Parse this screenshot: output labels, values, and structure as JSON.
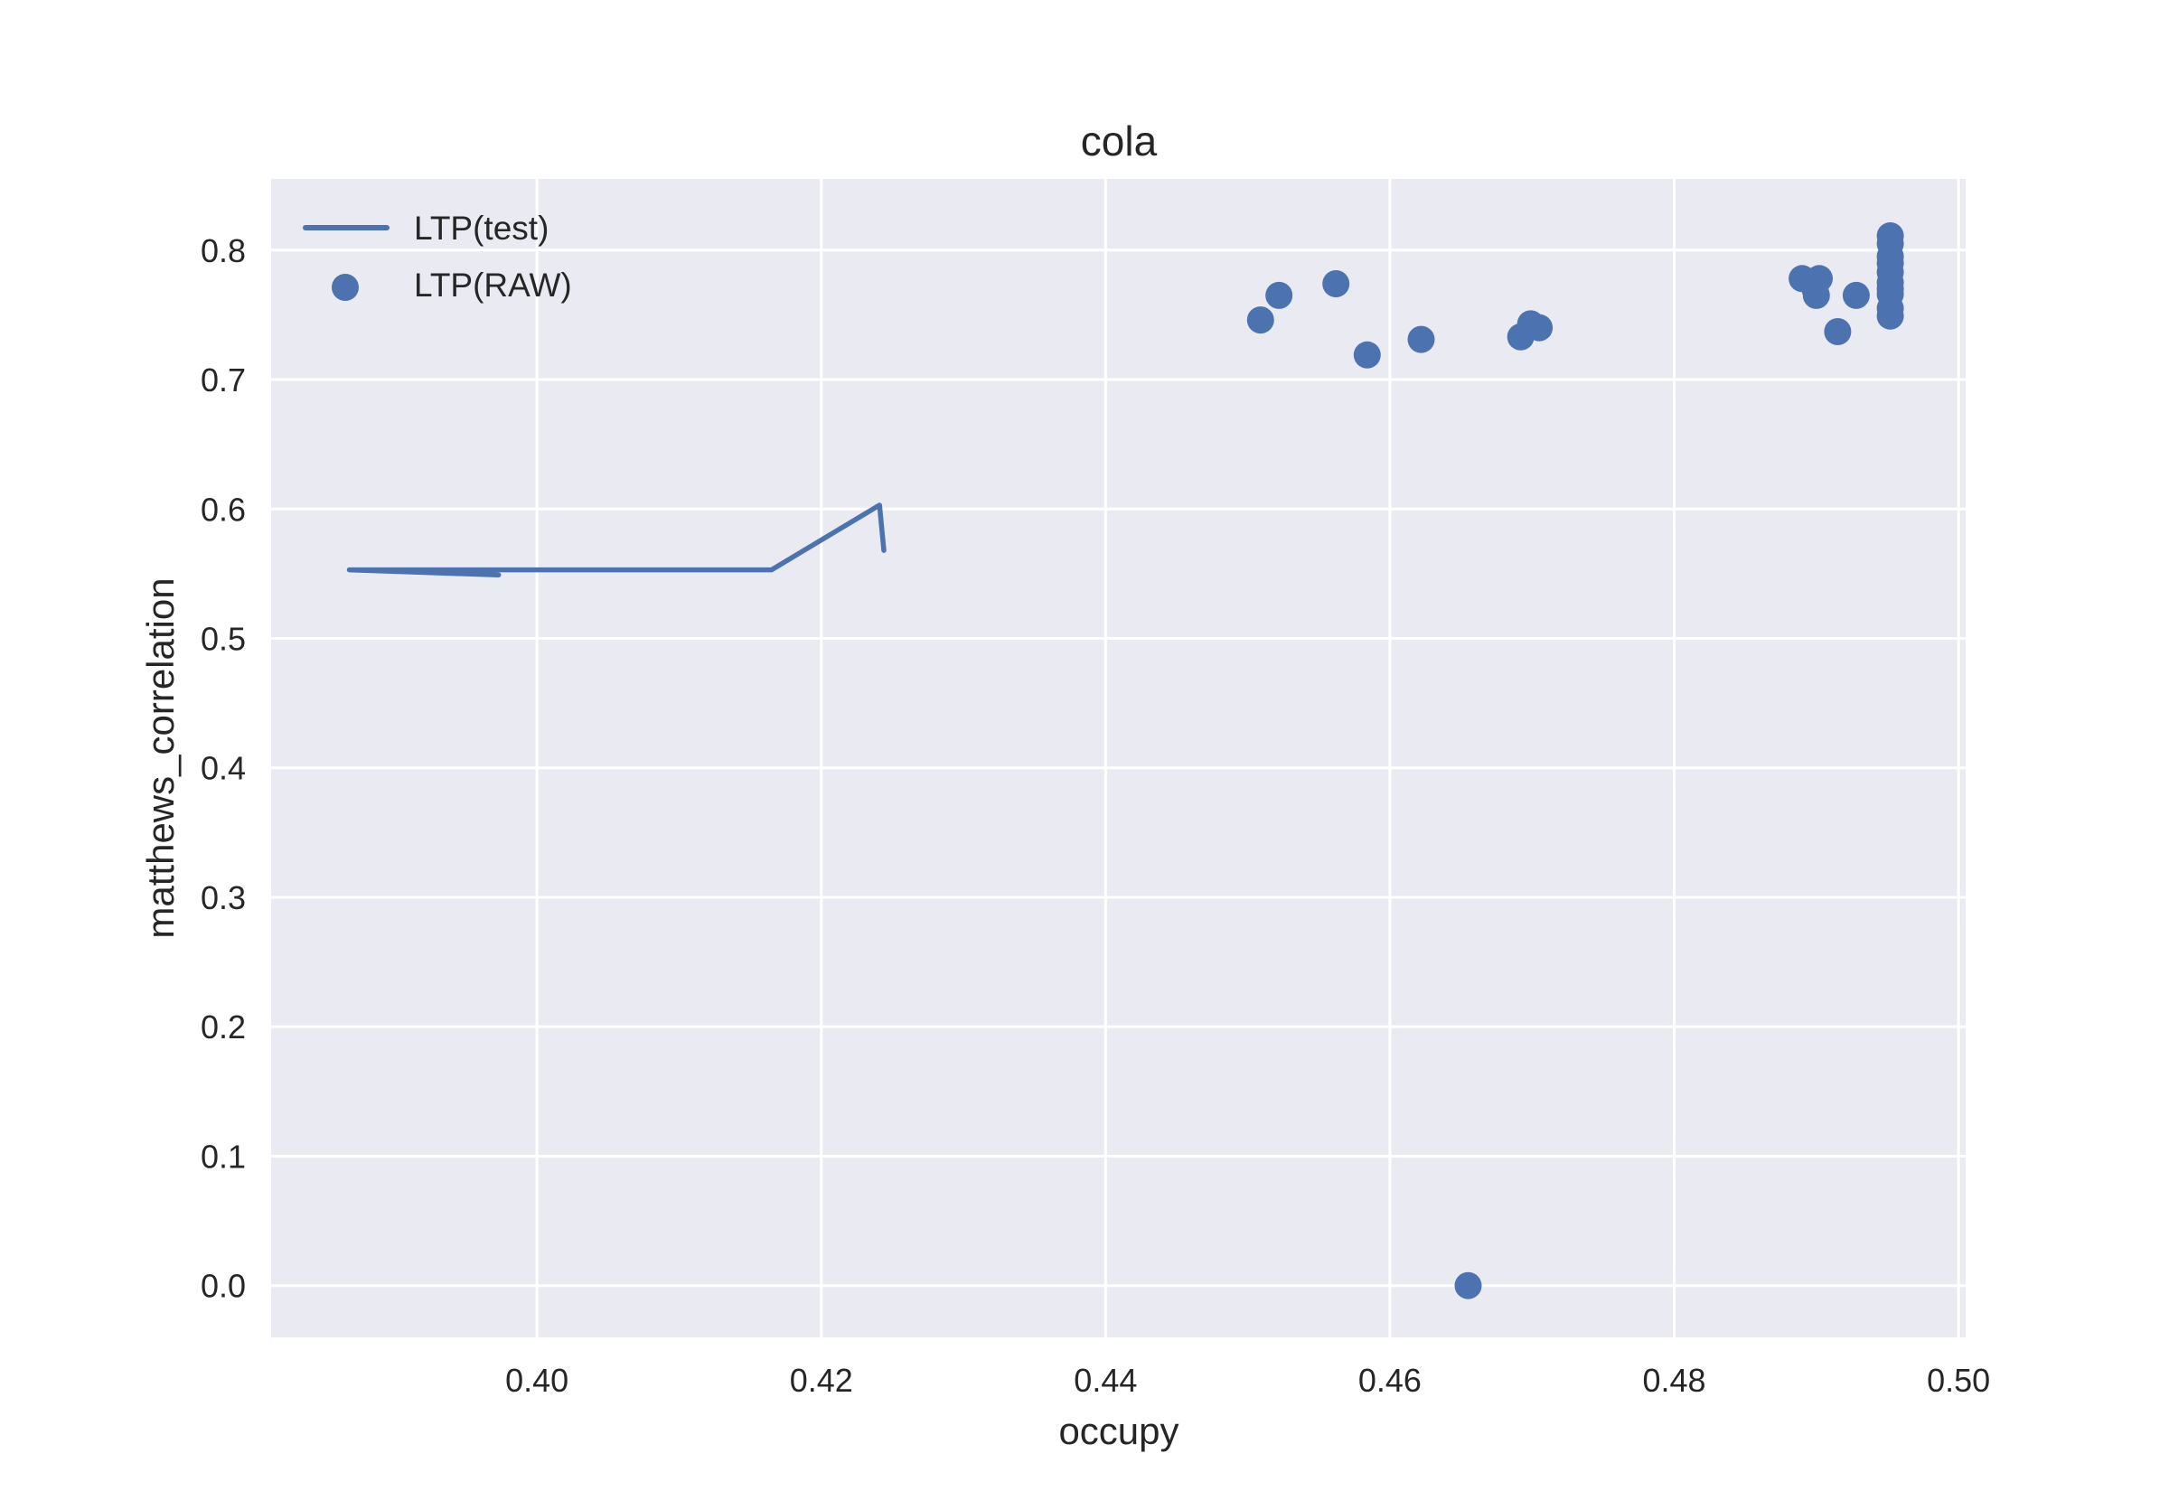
{
  "chart_data": {
    "type": "scatter",
    "title": "cola",
    "xlabel": "occupy",
    "ylabel": "matthews_correlation",
    "xlim": [
      0.3813,
      0.5005
    ],
    "ylim": [
      -0.04,
      0.855
    ],
    "xticks": [
      0.4,
      0.42,
      0.44,
      0.46,
      0.48,
      0.5
    ],
    "xtick_labels": [
      "0.40",
      "0.42",
      "0.44",
      "0.46",
      "0.48",
      "0.50"
    ],
    "yticks": [
      0.0,
      0.1,
      0.2,
      0.3,
      0.4,
      0.5,
      0.6,
      0.7,
      0.8
    ],
    "ytick_labels": [
      "0.0",
      "0.1",
      "0.2",
      "0.3",
      "0.4",
      "0.5",
      "0.6",
      "0.7",
      "0.8"
    ],
    "grid": true,
    "legend_position": "top-left",
    "colors": {
      "series": "#4c72b0",
      "plot_background": "#eaeaf2",
      "grid": "#ffffff",
      "text": "#262626"
    },
    "series": [
      {
        "name": "LTP(test)",
        "kind": "line",
        "x": [
          0.3973,
          0.3868,
          0.4165,
          0.4241,
          0.4244
        ],
        "y": [
          0.549,
          0.553,
          0.553,
          0.603,
          0.568
        ]
      },
      {
        "name": "LTP(RAW)",
        "kind": "scatter",
        "x": [
          0.4509,
          0.4522,
          0.4562,
          0.4584,
          0.4622,
          0.4655,
          0.4692,
          0.4699,
          0.4705,
          0.489,
          0.4899,
          0.4902,
          0.49,
          0.4915,
          0.4928,
          0.4952,
          0.4952,
          0.4952,
          0.4952,
          0.4952,
          0.4952,
          0.4952,
          0.4952,
          0.4952,
          0.4952
        ],
        "y": [
          0.746,
          0.765,
          0.774,
          0.719,
          0.731,
          0.0,
          0.733,
          0.743,
          0.74,
          0.778,
          0.77,
          0.778,
          0.765,
          0.737,
          0.765,
          0.811,
          0.805,
          0.795,
          0.79,
          0.783,
          0.775,
          0.77,
          0.766,
          0.755,
          0.749
        ]
      }
    ]
  }
}
